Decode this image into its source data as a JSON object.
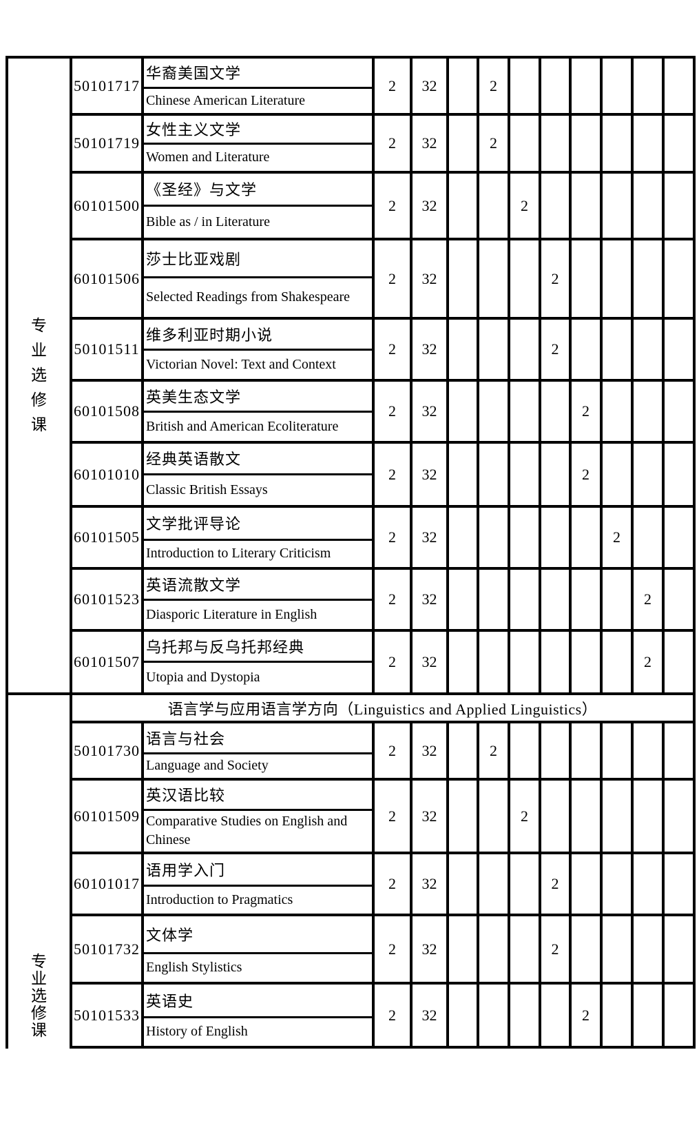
{
  "sections": [
    {
      "category": "专业选修课",
      "courses": [
        {
          "code": "50101717",
          "name_cn": "华裔美国文学",
          "name_en": "Chinese American Literature",
          "credits": "2",
          "hours": "32",
          "term": 2,
          "term_value": "2"
        },
        {
          "code": "50101719",
          "name_cn": "女性主义文学",
          "name_en": "Women and Literature",
          "credits": "2",
          "hours": "32",
          "term": 2,
          "term_value": "2"
        },
        {
          "code": "60101500",
          "name_cn": "《圣经》与文学",
          "name_en": "Bible as / in Literature",
          "credits": "2",
          "hours": "32",
          "term": 3,
          "term_value": "2"
        },
        {
          "code": "60101506",
          "name_cn": "莎士比亚戏剧",
          "name_en": "Selected Readings from Shakespeare",
          "credits": "2",
          "hours": "32",
          "term": 4,
          "term_value": "2"
        },
        {
          "code": "50101511",
          "name_cn": "维多利亚时期小说",
          "name_en": "Victorian Novel: Text and Context",
          "credits": "2",
          "hours": "32",
          "term": 4,
          "term_value": "2"
        },
        {
          "code": "60101508",
          "name_cn": "英美生态文学",
          "name_en": "British and American Ecoliterature",
          "credits": "2",
          "hours": "32",
          "term": 5,
          "term_value": "2"
        },
        {
          "code": "60101010",
          "name_cn": "经典英语散文",
          "name_en": "Classic British Essays",
          "credits": "2",
          "hours": "32",
          "term": 5,
          "term_value": "2"
        },
        {
          "code": "60101505",
          "name_cn": "文学批评导论",
          "name_en": "Introduction to Literary Criticism",
          "credits": "2",
          "hours": "32",
          "term": 6,
          "term_value": "2"
        },
        {
          "code": "60101523",
          "name_cn": "英语流散文学",
          "name_en": "Diasporic Literature in English",
          "credits": "2",
          "hours": "32",
          "term": 7,
          "term_value": "2"
        },
        {
          "code": "60101507",
          "name_cn": "乌托邦与反乌托邦经典",
          "name_en": "Utopia and Dystopia",
          "credits": "2",
          "hours": "32",
          "term": 7,
          "term_value": "2"
        }
      ]
    },
    {
      "category": "专业选修课",
      "header": "语言学与应用语言学方向（Linguistics and Applied Linguistics）",
      "courses": [
        {
          "code": "50101730",
          "name_cn": "语言与社会",
          "name_en": "Language and Society",
          "credits": "2",
          "hours": "32",
          "term": 2,
          "term_value": "2"
        },
        {
          "code": "60101509",
          "name_cn": "英汉语比较",
          "name_en": "Comparative Studies on English and Chinese",
          "credits": "2",
          "hours": "32",
          "term": 3,
          "term_value": "2"
        },
        {
          "code": "60101017",
          "name_cn": "语用学入门",
          "name_en": "Introduction to Pragmatics",
          "credits": "2",
          "hours": "32",
          "term": 4,
          "term_value": "2"
        },
        {
          "code": "50101732",
          "name_cn": "文体学",
          "name_en": "English Stylistics",
          "credits": "2",
          "hours": "32",
          "term": 4,
          "term_value": "2"
        },
        {
          "code": "50101533",
          "name_cn": "英语史",
          "name_en": "History of English",
          "credits": "2",
          "hours": "32",
          "term": 5,
          "term_value": "2"
        }
      ]
    }
  ]
}
